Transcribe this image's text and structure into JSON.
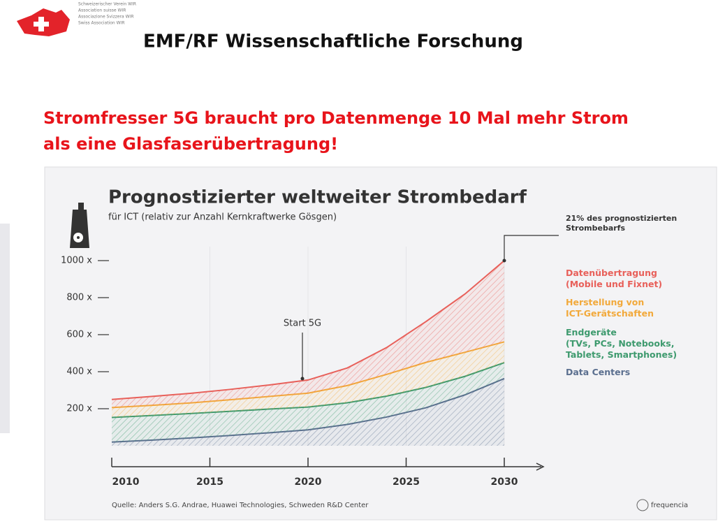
{
  "header": {
    "org_lines": [
      "Schweizerischer Verein WIR",
      "Association suisse WIR",
      "Associazione Svizzera WIR",
      "Swiss Association WIR"
    ],
    "title": "EMF/RF Wissenschaftliche Forschung"
  },
  "headline": [
    "Stromfresser 5G braucht pro Datenmenge 10 Mal mehr Strom",
    "als eine Glasfaserübertragung!"
  ],
  "chart_data": {
    "type": "stacked-area",
    "title": "Prognostizierter weltweiter Strombedarf",
    "subtitle": "für ICT (relativ zur Anzahl Kernkraftwerke Gösgen)",
    "x": [
      2010,
      2012,
      2014,
      2016,
      2018,
      2020,
      2022,
      2024,
      2026,
      2028,
      2030
    ],
    "series": [
      {
        "name": "Datenübertragung\n(Mobile und Fixnet)",
        "color": "#e8605a",
        "values": [
          44,
          48,
          52,
          56,
          62,
          71,
          95,
          145,
          220,
          315,
          439
        ]
      },
      {
        "name": "Herstellung von\nICT-Gerätschaften",
        "color": "#f2a93b",
        "values": [
          53,
          55,
          57,
          62,
          68,
          75,
          93,
          117,
          135,
          130,
          112
        ]
      },
      {
        "name": "Endgeräte\n(TVs, PCs, Notebooks,\nTablets, Smartphones)",
        "color": "#3e9a6e",
        "values": [
          133,
          133,
          132,
          131,
          128,
          123,
          117,
          113,
          110,
          100,
          86
        ]
      },
      {
        "name": "Data Centers",
        "color": "#5b6f8f",
        "values": [
          20,
          30,
          42,
          55,
          70,
          86,
          115,
          155,
          205,
          275,
          363
        ]
      }
    ],
    "xlim": [
      2010,
      2030
    ],
    "xticks": [
      2010,
      2015,
      2020,
      2025,
      2030
    ],
    "ylim": [
      0,
      1000
    ],
    "yticks": [
      {
        "value": 200,
        "label": "200 x"
      },
      {
        "value": 400,
        "label": "400 x"
      },
      {
        "value": 600,
        "label": "600 x"
      },
      {
        "value": 800,
        "label": "800 x"
      },
      {
        "value": 1000,
        "label": "1000 x"
      }
    ],
    "annotations": [
      {
        "text": "Start 5G"
      },
      {
        "text": "21% des prognostizierten\nStrombebarfs"
      }
    ],
    "source": "Quelle: Anders S.G. Andrae, Huawei Technologies, Schweden R&D Center",
    "logo": "frequencia"
  }
}
